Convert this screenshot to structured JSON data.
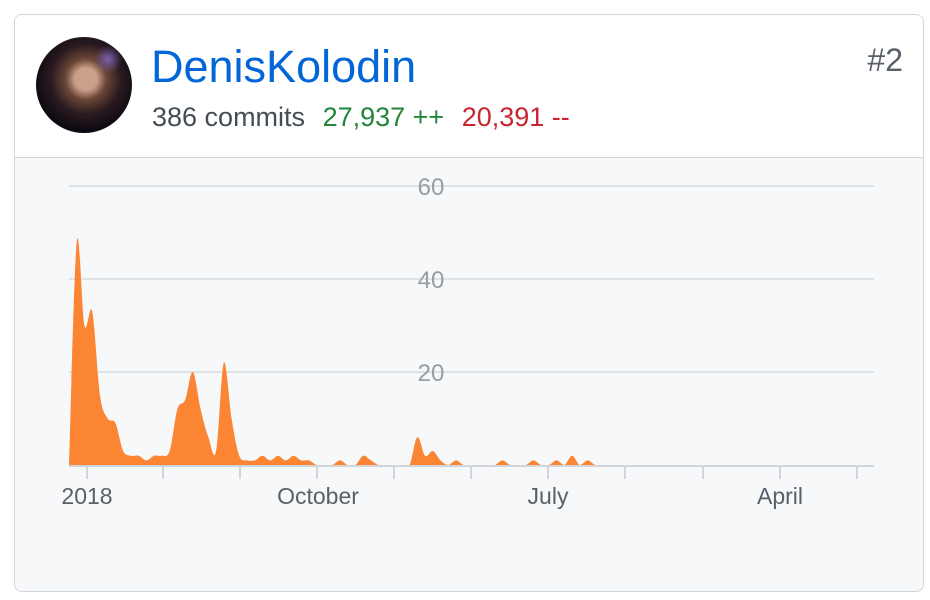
{
  "contributor": {
    "username": "DenisKolodin",
    "rank": "#2",
    "commits": "386 commits",
    "additions": "27,937 ++",
    "deletions": "20,391 --",
    "avatar_alt": "avatar"
  },
  "colors": {
    "link": "#0366d6",
    "additions": "#22863a",
    "deletions": "#cb2431",
    "area_fill": "#fb8532"
  },
  "chart_data": {
    "type": "area",
    "x_tick_labels": [
      "2018",
      "October",
      "July",
      "April"
    ],
    "y_tick_labels": [
      "60",
      "40",
      "20"
    ],
    "ylim": [
      0,
      60
    ],
    "grid": true,
    "series": [
      {
        "values": [
          0,
          48,
          30,
          33,
          15,
          10,
          9,
          3,
          2,
          2,
          1,
          2,
          2,
          3,
          12,
          14,
          20,
          12,
          6,
          3,
          22,
          10,
          2,
          1,
          1,
          2,
          1,
          2,
          1,
          2,
          1,
          1,
          0,
          0,
          0,
          1,
          0,
          0,
          2,
          1,
          0,
          0,
          0,
          0,
          0,
          6,
          2,
          3,
          1,
          0,
          1,
          0,
          0,
          0,
          0,
          0,
          1,
          0,
          0,
          0,
          1,
          0,
          0,
          1,
          0,
          2,
          0,
          1,
          0,
          0,
          0,
          0,
          0,
          0,
          0,
          0,
          0,
          0,
          0,
          0,
          0,
          0,
          0,
          0,
          0,
          0,
          0,
          0,
          0,
          0,
          0,
          0,
          0,
          0,
          0,
          0,
          0,
          0,
          0,
          0,
          0,
          0,
          0,
          0,
          0
        ]
      }
    ]
  }
}
